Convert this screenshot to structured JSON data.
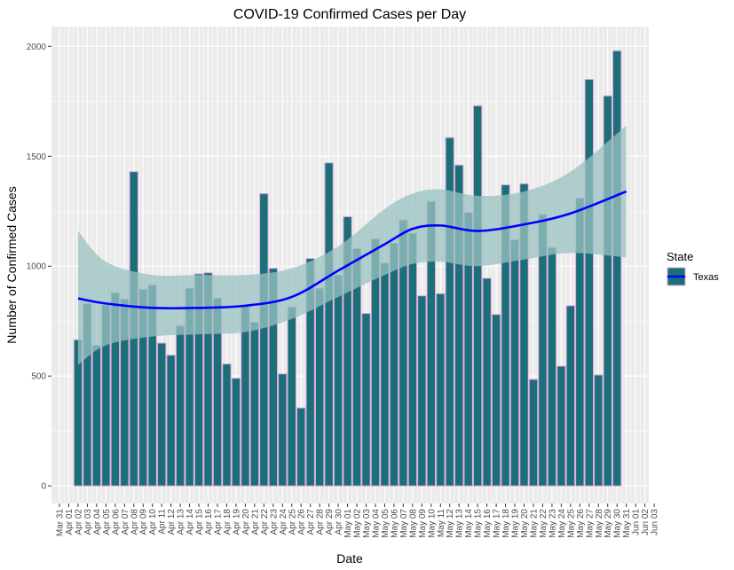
{
  "chart_data": {
    "type": "bar",
    "title": "COVID-19 Confirmed Cases per Day",
    "xlabel": "Date",
    "ylabel": "Number of Confirmed Cases",
    "x_tick_labels": [
      "Mar 31",
      "Apr 01",
      "Apr 02",
      "Apr 03",
      "Apr 04",
      "Apr 05",
      "Apr 06",
      "Apr 07",
      "Apr 08",
      "Apr 09",
      "Apr 10",
      "Apr 11",
      "Apr 12",
      "Apr 13",
      "Apr 14",
      "Apr 15",
      "Apr 16",
      "Apr 17",
      "Apr 18",
      "Apr 19",
      "Apr 20",
      "Apr 21",
      "Apr 22",
      "Apr 23",
      "Apr 24",
      "Apr 25",
      "Apr 26",
      "Apr 27",
      "Apr 28",
      "Apr 29",
      "Apr 30",
      "May 01",
      "May 02",
      "May 03",
      "May 04",
      "May 05",
      "May 06",
      "May 07",
      "May 08",
      "May 09",
      "May 10",
      "May 11",
      "May 12",
      "May 13",
      "May 14",
      "May 15",
      "May 16",
      "May 17",
      "May 18",
      "May 19",
      "May 20",
      "May 21",
      "May 22",
      "May 23",
      "May 24",
      "May 25",
      "May 26",
      "May 27",
      "May 28",
      "May 29",
      "May 30",
      "May 31",
      "Jun 01",
      "Jun 02",
      "Jun 03"
    ],
    "y_ticks": [
      0,
      500,
      1000,
      1500,
      2000
    ],
    "ylim": [
      -80,
      2090
    ],
    "grid": true,
    "legend": {
      "title": "State",
      "entries": [
        "Texas"
      ],
      "position": "right"
    },
    "series": [
      {
        "name": "Texas",
        "start_date": "Apr 02",
        "values": [
          665,
          830,
          640,
          825,
          880,
          850,
          1430,
          895,
          915,
          650,
          595,
          730,
          900,
          965,
          970,
          855,
          555,
          490,
          825,
          745,
          1330,
          990,
          510,
          815,
          355,
          1035,
          900,
          1470,
          960,
          1225,
          1080,
          785,
          1125,
          1015,
          1105,
          1210,
          1150,
          865,
          1295,
          875,
          1585,
          1460,
          1245,
          1730,
          945,
          780,
          1370,
          1120,
          1375,
          485,
          1235,
          1085,
          545,
          820,
          1310,
          1850,
          505,
          1775,
          1980
        ]
      }
    ],
    "smooth_fit": {
      "method": "loess",
      "x_dates": [
        "Apr 02",
        "Apr 05",
        "Apr 10",
        "Apr 15",
        "Apr 20",
        "Apr 25",
        "Apr 30",
        "May 05",
        "May 08",
        "May 11",
        "May 15",
        "May 20",
        "May 25",
        "May 31"
      ],
      "y": [
        853,
        830,
        810,
        810,
        820,
        860,
        980,
        1100,
        1170,
        1185,
        1160,
        1190,
        1240,
        1340
      ],
      "lower": [
        550,
        640,
        680,
        690,
        700,
        760,
        860,
        960,
        1010,
        1020,
        1000,
        1030,
        1060,
        1040
      ],
      "upper": [
        1160,
        1020,
        960,
        960,
        960,
        990,
        1090,
        1260,
        1330,
        1350,
        1320,
        1340,
        1430,
        1640
      ]
    },
    "colors": {
      "panel": "#EBEBEB",
      "grid": "#FFFFFF",
      "bar_fill": "#1B7078",
      "bar_outline": "#E4A8E4",
      "line": "#0000FF",
      "ribbon": "#99C2C0"
    }
  }
}
